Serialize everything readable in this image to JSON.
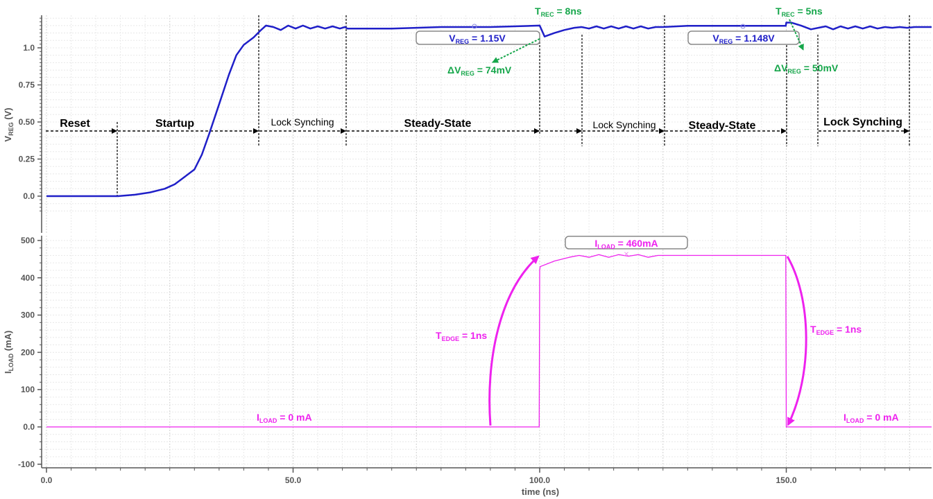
{
  "chart_data": [
    {
      "type": "line",
      "ylabel": "VREG (V)",
      "ylabel_main": "V",
      "ylabel_sub": "REG",
      "ylabel_unit": " (V)",
      "xlim": [
        0,
        180
      ],
      "ylim": [
        -0.1,
        1.2
      ],
      "yticks": [
        "0.0",
        "0.25",
        "0.50",
        "0.75",
        "1.0"
      ],
      "ytick_values": [
        0.0,
        0.25,
        0.5,
        0.75,
        1.0
      ],
      "grid": true,
      "color": "#1f1fc8",
      "series": [
        {
          "x": [
            0,
            12,
            14.5,
            18,
            21,
            24,
            26,
            28,
            30,
            31.5,
            33,
            35,
            37,
            38.5,
            40,
            42,
            43.5,
            44.5,
            46,
            47.5,
            49,
            50.5,
            52,
            53.5,
            55,
            56.5,
            58,
            59.5,
            60.5,
            61,
            70,
            80,
            90,
            100,
            101,
            103,
            105,
            107,
            108.5,
            110,
            111.5,
            113,
            114.5,
            116,
            117.5,
            119,
            120.5,
            122,
            123.5,
            125,
            130,
            140,
            149.9,
            150,
            151,
            153,
            155,
            156.5,
            158,
            159.5,
            161,
            162.5,
            164,
            165.5,
            167,
            168.5,
            170,
            171.5,
            173,
            174.5,
            176,
            180
          ],
          "y": [
            0.0,
            0.0,
            0.0,
            0.01,
            0.025,
            0.05,
            0.08,
            0.13,
            0.18,
            0.28,
            0.42,
            0.62,
            0.82,
            0.95,
            1.02,
            1.07,
            1.12,
            1.15,
            1.14,
            1.12,
            1.15,
            1.13,
            1.15,
            1.13,
            1.145,
            1.13,
            1.145,
            1.13,
            1.14,
            1.13,
            1.13,
            1.14,
            1.14,
            1.15,
            1.076,
            1.1,
            1.12,
            1.135,
            1.14,
            1.13,
            1.145,
            1.13,
            1.145,
            1.13,
            1.145,
            1.13,
            1.145,
            1.13,
            1.14,
            1.14,
            1.148,
            1.148,
            1.148,
            1.17,
            1.17,
            1.15,
            1.125,
            1.135,
            1.145,
            1.125,
            1.145,
            1.13,
            1.145,
            1.13,
            1.145,
            1.13,
            1.14,
            1.135,
            1.14,
            1.135,
            1.14,
            1.14
          ]
        }
      ],
      "phase_labels": [
        "Reset",
        "Startup",
        "Lock Synching",
        "Steady-State",
        "Lock Synching",
        "Steady-State",
        "Lock Synching"
      ],
      "annotations": {
        "vreg_1": "1.15V",
        "vreg_2": "1.148V",
        "trec_1": "8ns",
        "trec_2": "5ns",
        "dvreg_1": "74mV",
        "dvreg_2": "50mV",
        "sym_v": "V",
        "sym_dv": "ΔV",
        "sym_t": "T",
        "sub_reg": "REG",
        "sub_rec": "REC",
        "eq": " = "
      }
    },
    {
      "type": "line",
      "ylabel": "ILOAD (mA)",
      "ylabel_main": "I",
      "ylabel_sub": "LOAD",
      "ylabel_unit": " (mA)",
      "xlabel": "time (ns)",
      "xlim": [
        0,
        180
      ],
      "ylim": [
        -110,
        510
      ],
      "xticks": [
        "0.0",
        "50.0",
        "100.0",
        "150.0"
      ],
      "xtick_values": [
        0,
        50,
        100,
        150
      ],
      "yticks": [
        "-100",
        "0.0",
        "100",
        "200",
        "300",
        "400",
        "500"
      ],
      "ytick_values": [
        -100,
        0,
        100,
        200,
        300,
        400,
        500
      ],
      "grid": true,
      "color": "#ee22ee",
      "series": [
        {
          "x": [
            0,
            99.9,
            100,
            100.1,
            103,
            106,
            108,
            110,
            112,
            114,
            116,
            118,
            120,
            122,
            124,
            125,
            149.9,
            150,
            180
          ],
          "y": [
            0,
            0,
            420,
            430,
            445,
            455,
            460,
            455,
            462,
            455,
            462,
            458,
            462,
            455,
            460,
            460,
            460,
            0,
            0
          ]
        }
      ],
      "annotations": {
        "iload_high": "460mA",
        "iload_low_1": "0 mA",
        "iload_low_2": "0 mA",
        "tedge_1": "1ns",
        "tedge_2": "1ns",
        "sym_i": "I",
        "sym_t": "T",
        "sub_load": "LOAD",
        "sub_edge": "EDGE",
        "eq": " = "
      }
    }
  ]
}
